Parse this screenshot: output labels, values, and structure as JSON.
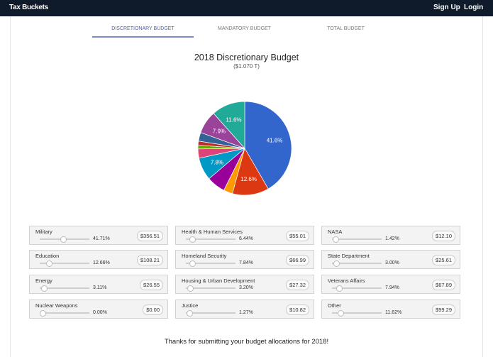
{
  "nav": {
    "brand": "Tax Buckets",
    "signup": "Sign Up",
    "login": "Login"
  },
  "tabs": [
    {
      "label": "DISCRETIONARY BUDGET",
      "active": true
    },
    {
      "label": "MANDATORY BUDGET",
      "active": false
    },
    {
      "label": "TOTAL BUDGET",
      "active": false
    }
  ],
  "header": {
    "title": "2018 Discretionary Budget",
    "subtitle": "($1.070 T)"
  },
  "chart_data": {
    "type": "pie",
    "slices": [
      {
        "name": "Military",
        "value": 41.71,
        "color": "#3366cc",
        "label": "41.6%"
      },
      {
        "name": "Education",
        "value": 12.66,
        "color": "#dc3912",
        "label": "12.6%"
      },
      {
        "name": "Energy",
        "value": 3.11,
        "color": "#ff9900",
        "label": ""
      },
      {
        "name": "Health & Human Services",
        "value": 6.44,
        "color": "#990099",
        "label": ""
      },
      {
        "name": "Homeland Security",
        "value": 7.84,
        "color": "#0099c6",
        "label": "7.8%"
      },
      {
        "name": "Housing & Urban Development",
        "value": 3.2,
        "color": "#dd4477",
        "label": ""
      },
      {
        "name": "Justice",
        "value": 1.27,
        "color": "#66aa00",
        "label": ""
      },
      {
        "name": "NASA",
        "value": 1.42,
        "color": "#b82e2e",
        "label": ""
      },
      {
        "name": "State Department",
        "value": 3.0,
        "color": "#316395",
        "label": ""
      },
      {
        "name": "Veterans Affairs",
        "value": 7.94,
        "color": "#994499",
        "label": "7.9%"
      },
      {
        "name": "Other",
        "value": 11.62,
        "color": "#22aa99",
        "label": "11.6%"
      },
      {
        "name": "Nuclear Weapons",
        "value": 0,
        "color": "#aaaa11",
        "label": ""
      }
    ]
  },
  "categories": [
    {
      "name": "Military",
      "pct": "41.71%",
      "level": 41.71,
      "amount": "$356.51"
    },
    {
      "name": "Education",
      "pct": "12.66%",
      "level": 12.66,
      "amount": "$108.21"
    },
    {
      "name": "Energy",
      "pct": "3.11%",
      "level": 3.11,
      "amount": "$26.55"
    },
    {
      "name": "Nuclear Weapons",
      "pct": "0.00%",
      "level": 0,
      "amount": "$0.00"
    },
    {
      "name": "Health & Human Services",
      "pct": "6.44%",
      "level": 6.44,
      "amount": "$55.01"
    },
    {
      "name": "Homeland Security",
      "pct": "7.84%",
      "level": 7.84,
      "amount": "$66.99"
    },
    {
      "name": "Housing & Urban Development",
      "pct": "3.20%",
      "level": 3.2,
      "amount": "$27.32"
    },
    {
      "name": "Justice",
      "pct": "1.27%",
      "level": 1.27,
      "amount": "$10.82"
    },
    {
      "name": "NASA",
      "pct": "1.42%",
      "level": 1.42,
      "amount": "$12.10"
    },
    {
      "name": "State Department",
      "pct": "3.00%",
      "level": 3.0,
      "amount": "$25.61"
    },
    {
      "name": "Veterans Affairs",
      "pct": "7.94%",
      "level": 7.94,
      "amount": "$67.89"
    },
    {
      "name": "Other",
      "pct": "11.62%",
      "level": 11.62,
      "amount": "$99.29"
    }
  ],
  "footer": "Thanks for submitting your budget allocations for 2018!"
}
